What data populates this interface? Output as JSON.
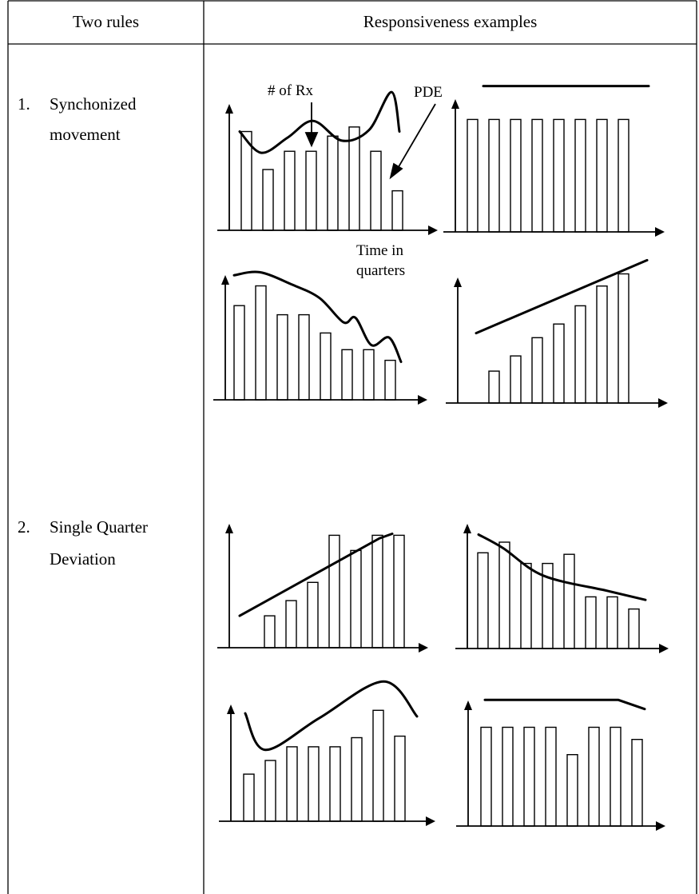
{
  "header": {
    "col1": "Two rules",
    "col2": "Responsiveness examples"
  },
  "rules": [
    {
      "number": "1.",
      "lines": [
        "Synchonized",
        "movement"
      ]
    },
    {
      "number": "2.",
      "lines": [
        "Single Quarter",
        "Deviation"
      ]
    }
  ],
  "annotations": {
    "rx": "# of Rx",
    "pde": "PDE",
    "time_line1": "Time in",
    "time_line2": "quarters"
  },
  "chart_data": [
    {
      "type": "bar",
      "group": "Synchonized movement",
      "bars": [
        6.5,
        4,
        5.2,
        5.2,
        6.2,
        6.8,
        5.2,
        2.6
      ],
      "curve": [
        6.5,
        5.1,
        6.1,
        7.2,
        5.9,
        6.6,
        9.1,
        6.5
      ]
    },
    {
      "type": "bar",
      "group": "Synchonized movement",
      "bars": [
        7.4,
        7.4,
        7.4,
        7.4,
        7.4,
        7.4,
        7.4,
        7.4
      ],
      "curve": [
        9.6,
        9.6
      ]
    },
    {
      "type": "bar",
      "group": "Synchonized movement",
      "bars": [
        6.2,
        7.5,
        5.6,
        5.6,
        4.4,
        3.3,
        3.3,
        2.6
      ],
      "curve": [
        8.2,
        8.4,
        7.6,
        6.7,
        5.1,
        5.4,
        3.6,
        4.1,
        2.5
      ]
    },
    {
      "type": "bar",
      "group": "Synchonized movement",
      "bars": [
        0,
        2.1,
        3.1,
        4.3,
        5.2,
        6.4,
        7.7,
        8.5
      ],
      "curve": [
        4.6,
        9.4
      ]
    },
    {
      "type": "bar",
      "group": "Single Quarter Deviation",
      "bars": [
        0,
        2.1,
        3.1,
        4.3,
        7.4,
        6.4,
        7.4,
        7.4
      ],
      "curve": [
        2.1,
        7.2,
        7.5
      ]
    },
    {
      "type": "bar",
      "group": "Single Quarter Deviation",
      "bars": [
        6.3,
        7,
        5.6,
        5.6,
        6.2,
        3.4,
        3.4,
        2.6
      ],
      "curve": [
        7.5,
        6.6,
        4.8,
        3.8,
        3.2
      ]
    },
    {
      "type": "bar",
      "group": "Single Quarter Deviation",
      "bars": [
        3.1,
        4,
        4.9,
        4.9,
        4.9,
        5.5,
        7.3,
        5.6
      ],
      "curve": [
        7.1,
        4.7,
        6.8,
        9.2,
        6.9
      ]
    },
    {
      "type": "bar",
      "group": "Single Quarter Deviation",
      "bars": [
        6.5,
        6.5,
        6.5,
        6.5,
        4.7,
        6.5,
        6.5,
        5.7
      ],
      "curve": [
        8.3,
        8.3,
        7.7
      ]
    }
  ]
}
